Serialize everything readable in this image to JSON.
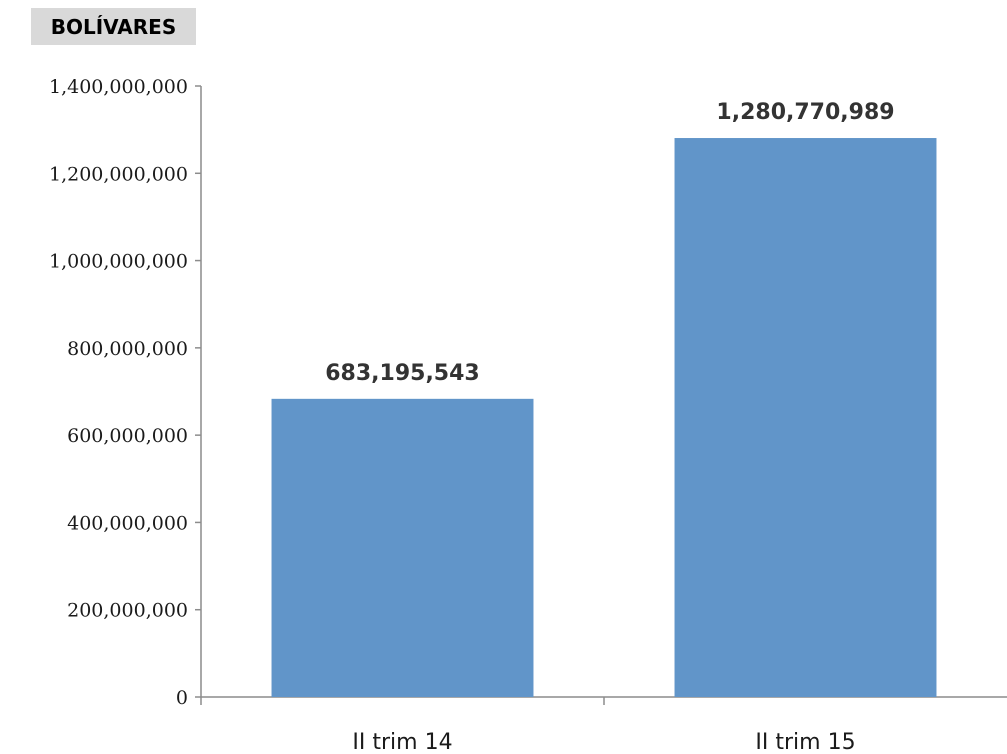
{
  "unit_label": "BOLÍVARES",
  "colors": {
    "bar": "#6195c9",
    "axis": "#8c8c8c",
    "unit_bg": "#d9d9d9"
  },
  "chart_data": {
    "type": "bar",
    "categories": [
      "II trim 14",
      "II trim 15"
    ],
    "values": [
      683195543,
      1280770989
    ],
    "data_labels": [
      "683,195,543",
      "1,280,770,989"
    ],
    "ylim": [
      0,
      1400000000
    ],
    "yticks": [
      0,
      200000000,
      400000000,
      600000000,
      800000000,
      1000000000,
      1200000000,
      1400000000
    ],
    "ytick_labels": [
      "0",
      "200,000,000",
      "400,000,000",
      "600,000,000",
      "800,000,000",
      "1,000,000,000",
      "1,200,000,000",
      "1,400,000,000"
    ],
    "grid": false,
    "legend": "none"
  }
}
